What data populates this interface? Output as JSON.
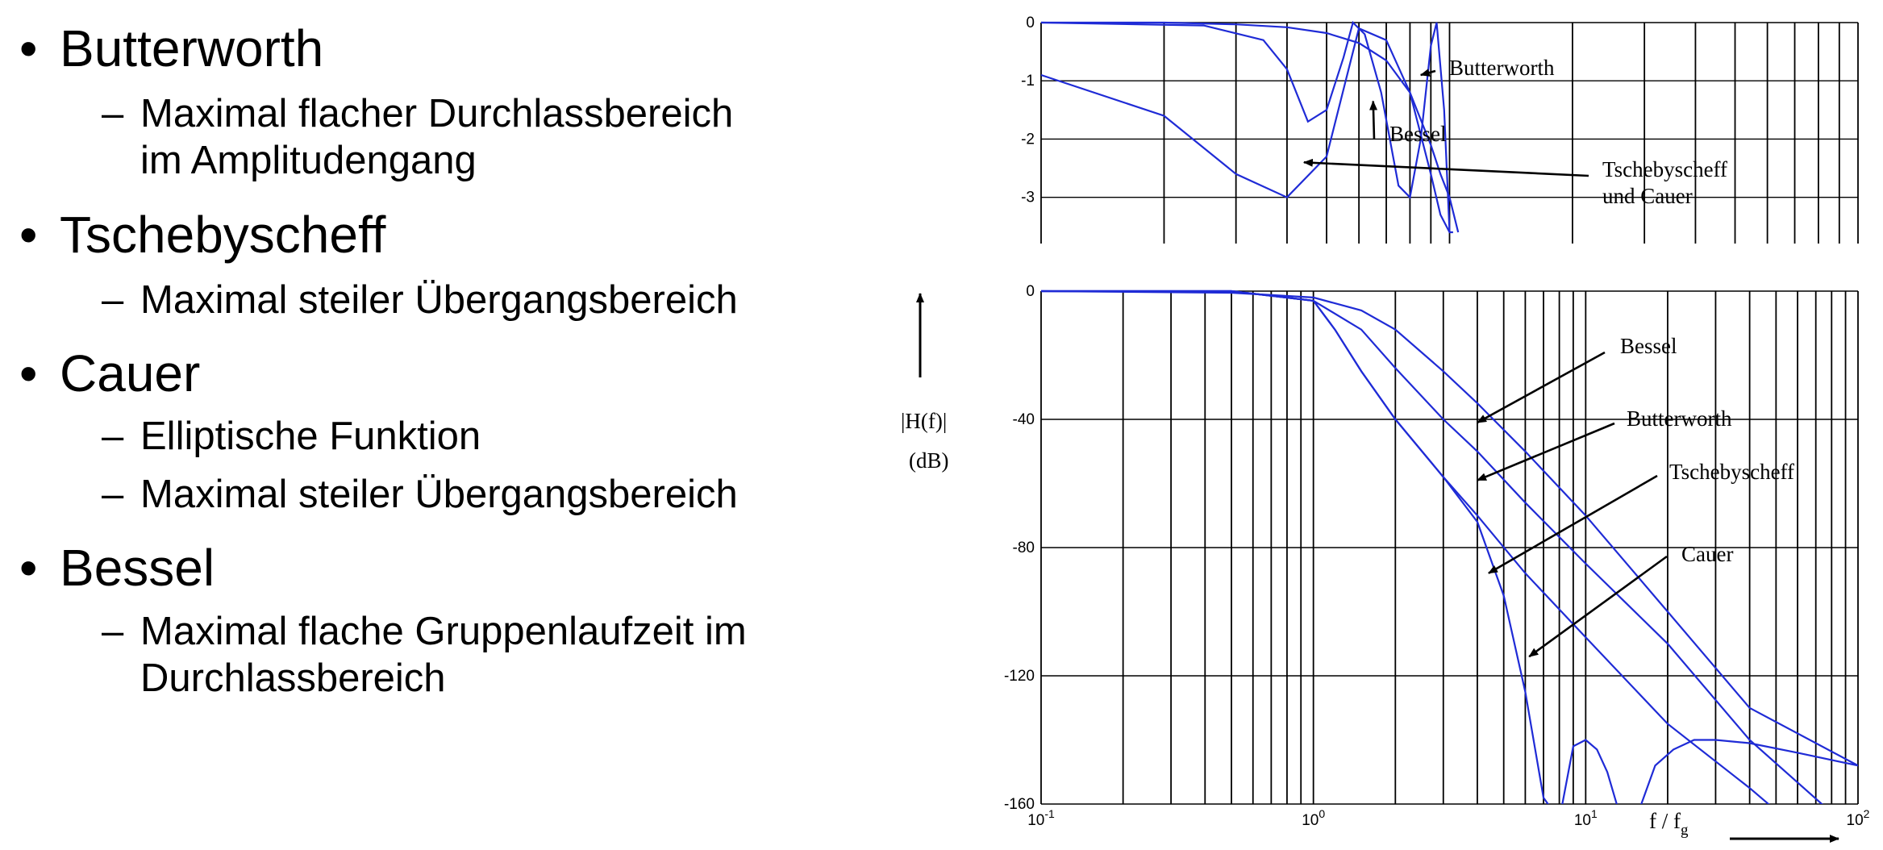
{
  "bullets": [
    {
      "title": "Butterworth",
      "subs": [
        "Maximal flacher Durchlassbereich\nim Amplitudengang"
      ]
    },
    {
      "title": "Tschebyscheff",
      "subs": [
        "Maximal steiler Übergangsbereich"
      ]
    },
    {
      "title": "Cauer",
      "subs": [
        "Elliptische Funktion",
        "Maximal steiler Übergangsbereich"
      ]
    },
    {
      "title": "Bessel",
      "subs": [
        "Maximal flache Gruppenlaufzeit im\nDurchlassbereich"
      ]
    }
  ],
  "chart_data": [
    {
      "type": "line",
      "x_scale": "log",
      "xlim": [
        0.1,
        10
      ],
      "ylim": [
        -3.6,
        0
      ],
      "yticks": [
        0,
        -1,
        -2,
        -3
      ],
      "ytick_labels": [
        "0",
        "-1",
        "-2",
        "-3"
      ],
      "grid": true,
      "series": [
        {
          "name": "Butterworth",
          "x": [
            0.1,
            0.2,
            0.3,
            0.4,
            0.5,
            0.6,
            0.7,
            0.8,
            0.9,
            0.95,
            1.0,
            1.05
          ],
          "y": [
            0,
            0,
            -0.03,
            -0.08,
            -0.18,
            -0.35,
            -0.65,
            -1.2,
            -2.1,
            -2.6,
            -3.0,
            -3.6
          ]
        },
        {
          "name": "Bessel",
          "x": [
            0.1,
            0.2,
            0.3,
            0.4,
            0.5,
            0.6,
            0.7,
            0.8,
            0.9,
            0.95,
            1.0,
            1.02
          ],
          "y": [
            -0.9,
            -1.6,
            -2.6,
            -3.0,
            -2.3,
            -0.1,
            -0.3,
            -1.2,
            -2.6,
            -3.3,
            -3.6,
            -3.6
          ]
        },
        {
          "name": "Tschebyscheff",
          "x": [
            0.1,
            0.25,
            0.35,
            0.4,
            0.45,
            0.5,
            0.55,
            0.58,
            0.62,
            0.68,
            0.75,
            0.8,
            0.85,
            0.9,
            0.93,
            0.97,
            1.0
          ],
          "y": [
            0,
            -0.05,
            -0.3,
            -0.8,
            -1.7,
            -1.5,
            -0.6,
            0,
            -0.2,
            -1.2,
            -2.8,
            -3.0,
            -2.0,
            -0.4,
            0,
            -1.5,
            -3.6
          ]
        }
      ],
      "annotations": [
        {
          "text": "Butterworth",
          "x": 0.85,
          "y": -0.9
        },
        {
          "text": "Bessel",
          "x": 0.65,
          "y": -1.35
        },
        {
          "text": "Tschebyscheff",
          "line2": "und Cauer",
          "x": 0.44,
          "y": -2.4
        }
      ]
    },
    {
      "type": "line",
      "x_scale": "log",
      "xlim": [
        0.1,
        100
      ],
      "ylim": [
        -160,
        0
      ],
      "yticks": [
        0,
        -40,
        -80,
        -120,
        -160
      ],
      "ytick_labels": [
        "0",
        "-40",
        "-80",
        "-120",
        "-160"
      ],
      "xtick_labels": [
        {
          "base": "10",
          "exp": "-1"
        },
        {
          "base": "10",
          "exp": "0"
        },
        {
          "base": "10",
          "exp": "1"
        },
        {
          "base": "10",
          "exp": "2"
        }
      ],
      "grid": true,
      "ylabel": "|H(f)|",
      "ylabel_unit": "(dB)",
      "xlabel": "f / f",
      "xlabel_sub": "g",
      "series": [
        {
          "name": "Bessel",
          "x": [
            0.1,
            0.5,
            1,
            1.5,
            2,
            3,
            4,
            6,
            10,
            20,
            40,
            100
          ],
          "y": [
            0,
            -0.5,
            -2,
            -6,
            -12,
            -25,
            -35,
            -50,
            -70,
            -100,
            -130,
            -148
          ]
        },
        {
          "name": "Butterworth",
          "x": [
            0.1,
            0.5,
            1,
            1.5,
            2,
            3,
            4,
            6,
            10,
            20,
            40,
            100
          ],
          "y": [
            0,
            0,
            -3,
            -12,
            -24,
            -40,
            -50,
            -66,
            -85,
            -110,
            -140,
            -170
          ]
        },
        {
          "name": "Tschebyscheff",
          "x": [
            0.1,
            0.5,
            1,
            1.2,
            1.5,
            2,
            3,
            4,
            6,
            10,
            20,
            40,
            55
          ],
          "y": [
            0,
            0,
            -3,
            -12,
            -25,
            -40,
            -58,
            -70,
            -88,
            -108,
            -135,
            -155,
            -165
          ]
        },
        {
          "name": "Cauer",
          "x": [
            0.1,
            0.5,
            1,
            1.2,
            1.5,
            2,
            3,
            4,
            5,
            6,
            7,
            8,
            9,
            10,
            11,
            12,
            13,
            14,
            16,
            18,
            21,
            25,
            30,
            40,
            60,
            100
          ],
          "y": [
            0,
            0,
            -3,
            -12,
            -25,
            -40,
            -58,
            -72,
            -95,
            -125,
            -158,
            -165,
            -142,
            -140,
            -143,
            -150,
            -160,
            -170,
            -160,
            -148,
            -143,
            -140,
            -140,
            -141,
            -144,
            -148
          ]
        }
      ],
      "annotations": [
        {
          "text": "Bessel",
          "x": 4,
          "y": -41
        },
        {
          "text": "Butterworth",
          "x": 4,
          "y": -59
        },
        {
          "text": "Tschebyscheff",
          "x": 4.4,
          "y": -88
        },
        {
          "text": "Cauer",
          "x": 6.2,
          "y": -114
        }
      ]
    }
  ]
}
